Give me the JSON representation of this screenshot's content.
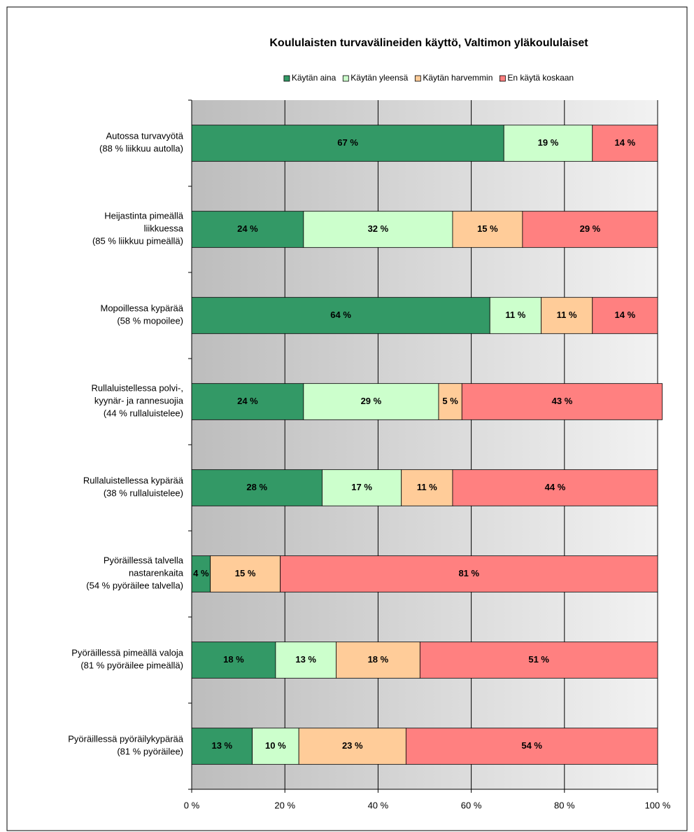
{
  "chart_data": {
    "type": "stacked-bar-horizontal",
    "title": "Koululaisten turvavälineiden käyttö, Valtimon yläkoululaiset",
    "categories": [
      [
        "Autossa turvavyötä",
        "(88 % liikkuu autolla)"
      ],
      [
        "Heijastinta pimeällä",
        "liikkuessa",
        "(85 % liikkuu pimeällä)"
      ],
      [
        "Mopoillessa kypärää",
        "(58 % mopoilee)"
      ],
      [
        "Rullaluistellessa polvi-,",
        "kyynär- ja rannesuojia",
        "(44 % rullaluistelee)"
      ],
      [
        "Rullaluistellessa kypärää",
        "(38 % rullaluistelee)"
      ],
      [
        "Pyöräillessä talvella",
        "nastarenkaita",
        "(54 % pyöräilee talvella)"
      ],
      [
        "Pyöräillessä pimeällä valoja",
        "(81 % pyöräilee pimeällä)"
      ],
      [
        "Pyöräillessä pyöräilykypärää",
        "(81 % pyöräilee)"
      ]
    ],
    "series": [
      {
        "name": "Käytän aina",
        "color": "#339966",
        "values": [
          67,
          24,
          64,
          24,
          28,
          4,
          18,
          13
        ],
        "value_labels": [
          "67 %",
          "24 %",
          "64 %",
          "24 %",
          "28 %",
          "4 %",
          "18 %",
          "13 %"
        ]
      },
      {
        "name": "Käytän yleensä",
        "color": "#ccffcc",
        "values": [
          19,
          32,
          11,
          29,
          17,
          null,
          13,
          10
        ],
        "value_labels": [
          "19 %",
          "32 %",
          "11 %",
          "29 %",
          "17 %",
          null,
          "13 %",
          "10 %"
        ]
      },
      {
        "name": "Käytän harvemmin",
        "color": "#ffcc99",
        "values": [
          null,
          15,
          11,
          5,
          11,
          15,
          18,
          23
        ],
        "value_labels": [
          null,
          "15 %",
          "11 %",
          "5 %",
          "11 %",
          "15 %",
          "18 %",
          "23 %"
        ]
      },
      {
        "name": "En käytä koskaan",
        "color": "#ff8080",
        "values": [
          14,
          29,
          14,
          43,
          44,
          81,
          51,
          54
        ],
        "value_labels": [
          "14 %",
          "29 %",
          "14 %",
          "43 %",
          "44 %",
          "81 %",
          "51 %",
          "54 %"
        ]
      }
    ],
    "xlim": [
      0,
      100
    ],
    "xticks": [
      {
        "value": 0,
        "label": "0 %"
      },
      {
        "value": 20,
        "label": "20 %"
      },
      {
        "value": 40,
        "label": "40 %"
      },
      {
        "value": 60,
        "label": "60 %"
      },
      {
        "value": 80,
        "label": "80 %"
      },
      {
        "value": 100,
        "label": "100 %"
      }
    ],
    "grid": true
  }
}
